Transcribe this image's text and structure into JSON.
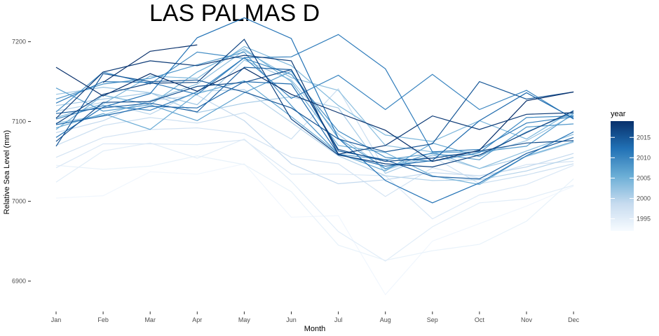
{
  "chart_data": {
    "type": "line",
    "title": "LAS PALMAS D",
    "xlabel": "Month",
    "ylabel": "Relative Sea Level (mm)",
    "categories": [
      "Jan",
      "Feb",
      "Mar",
      "Apr",
      "May",
      "Jun",
      "Jul",
      "Aug",
      "Sep",
      "Oct",
      "Nov",
      "Dec"
    ],
    "yticks": [
      6900,
      7000,
      7100,
      7200
    ],
    "ytick_labels": [
      "6900",
      "7000",
      "7100",
      "7200"
    ],
    "ylim": [
      6875,
      7240
    ],
    "grid": false,
    "legend": {
      "title": "year",
      "placement": "right",
      "type": "colorbar",
      "range": [
        1992,
        2019
      ],
      "ticks": [
        1995,
        2000,
        2005,
        2010,
        2015
      ],
      "tick_labels": [
        "1995",
        "2000",
        "2005",
        "2010",
        "2015"
      ],
      "color_low": "#f7fbff",
      "color_high": "#08306b"
    },
    "series": [
      {
        "year": 1993,
        "values": [
          7004,
          7007,
          7037,
          7034,
          7047,
          6980,
          6982,
          6883,
          6950,
          6972,
          6994,
          7019
        ]
      },
      {
        "year": 1994,
        "values": [
          7045,
          7040,
          7044,
          7057,
          7046,
          7012,
          6945,
          6926,
          6938,
          6946,
          6975,
          7028
        ]
      },
      {
        "year": 1995,
        "values": [
          7024,
          7063,
          7073,
          7054,
          7078,
          7025,
          6962,
          6925,
          6968,
          6998,
          7003,
          7020
        ]
      },
      {
        "year": 1996,
        "values": [
          7042,
          7072,
          7072,
          7071,
          7077,
          7034,
          7034,
          7032,
          6978,
          7008,
          7021,
          7045
        ]
      },
      {
        "year": 1997,
        "values": [
          7055,
          7080,
          7090,
          7092,
          7085,
          7055,
          7047,
          7006,
          7042,
          7029,
          7046,
          7050
        ]
      },
      {
        "year": 1998,
        "values": [
          7070,
          7095,
          7105,
          7098,
          7111,
          7078,
          7141,
          7039,
          7056,
          7022,
          7033,
          7047
        ]
      },
      {
        "year": 1999,
        "values": [
          7086,
          7101,
          7126,
          7133,
          7101,
          7047,
          7022,
          7027,
          7036,
          7032,
          7043,
          7060
        ]
      },
      {
        "year": 2000,
        "values": [
          7113,
          7124,
          7109,
          7138,
          7140,
          7099,
          7057,
          7032,
          7026,
          7027,
          7038,
          7055
        ]
      },
      {
        "year": 2001,
        "values": [
          7120,
          7128,
          7136,
          7111,
          7123,
          7131,
          7117,
          7035,
          7058,
          7041,
          7056,
          7074
        ]
      },
      {
        "year": 2002,
        "values": [
          7134,
          7143,
          7136,
          7121,
          7177,
          7152,
          7084,
          7040,
          7058,
          7058,
          7076,
          7108
        ]
      },
      {
        "year": 2003,
        "values": [
          7098,
          7108,
          7126,
          7147,
          7189,
          7155,
          7139,
          7070,
          7062,
          7041,
          7063,
          7084
        ]
      },
      {
        "year": 2004,
        "values": [
          7105,
          7122,
          7157,
          7154,
          7194,
          7170,
          7120,
          7083,
          7075,
          7101,
          7078,
          7114
        ]
      },
      {
        "year": 2005,
        "values": [
          7090,
          7133,
          7121,
          7162,
          7191,
          7150,
          7070,
          7061,
          7032,
          7021,
          7057,
          7075
        ]
      },
      {
        "year": 2006,
        "values": [
          7092,
          7110,
          7090,
          7135,
          7151,
          7106,
          7060,
          7038,
          7073,
          7056,
          7087,
          7111
        ]
      },
      {
        "year": 2007,
        "values": [
          7142,
          7113,
          7121,
          7101,
          7136,
          7163,
          7079,
          7041,
          7061,
          7062,
          7069,
          7110
        ]
      },
      {
        "year": 2008,
        "values": [
          7128,
          7147,
          7154,
          7171,
          7187,
          7120,
          7059,
          7052,
          7060,
          7052,
          7093,
          7097
        ]
      },
      {
        "year": 2009,
        "values": [
          7112,
          7162,
          7147,
          7187,
          7179,
          7159,
          7088,
          7055,
          7050,
          7061,
          7105,
          7107
        ]
      },
      {
        "year": 2010,
        "values": [
          7103,
          7120,
          7114,
          7137,
          7180,
          7129,
          7158,
          7115,
          7159,
          7115,
          7139,
          7103
        ]
      },
      {
        "year": 2011,
        "values": [
          7123,
          7150,
          7149,
          7134,
          7180,
          7181,
          7209,
          7166,
          7062,
          7065,
          7098,
          7106
        ]
      },
      {
        "year": 2012,
        "values": [
          7080,
          7118,
          7135,
          7205,
          7230,
          7204,
          7079,
          7026,
          6998,
          7023,
          7057,
          7087
        ]
      },
      {
        "year": 2013,
        "values": [
          7096,
          7107,
          7119,
          7117,
          7150,
          7147,
          7059,
          7044,
          7051,
          7101,
          7136,
          7104
        ]
      },
      {
        "year": 2014,
        "values": [
          7110,
          7117,
          7123,
          7112,
          7168,
          7165,
          7063,
          7052,
          7031,
          7028,
          7060,
          7080
        ]
      },
      {
        "year": 2015,
        "values": [
          7069,
          7160,
          7150,
          7152,
          7137,
          7117,
          7078,
          7062,
          7072,
          7150,
          7128,
          7137
        ]
      },
      {
        "year": 2016,
        "values": [
          7075,
          7124,
          7125,
          7144,
          7149,
          7165,
          7065,
          7050,
          7054,
          7063,
          7073,
          7076
        ]
      },
      {
        "year": 2017,
        "values": [
          7097,
          7134,
          7148,
          7149,
          7203,
          7103,
          7058,
          7047,
          7043,
          7058,
          7086,
          7113
        ]
      },
      {
        "year": 2018,
        "values": [
          7104,
          7162,
          7176,
          7170,
          7183,
          7176,
          7059,
          7070,
          7107,
          7090,
          7109,
          7111
        ]
      },
      {
        "year": 2019,
        "values": [
          7168,
          7132,
          7160,
          7138,
          7167,
          7134,
          7111,
          7089,
          7050,
          7064,
          7126,
          7137
        ]
      },
      {
        "year": 2019,
        "values": [
          null,
          7149,
          7188,
          7196,
          null,
          null,
          null,
          null,
          null,
          null,
          null,
          null
        ]
      }
    ]
  }
}
